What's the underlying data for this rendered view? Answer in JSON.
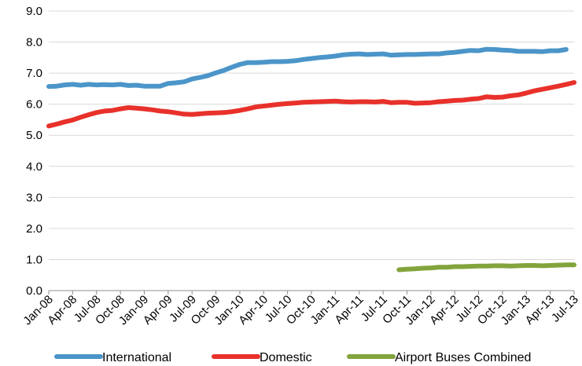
{
  "chart_data": {
    "type": "line",
    "title": "",
    "xlabel": "",
    "ylabel": "",
    "ylim": [
      0,
      9
    ],
    "yticks": [
      "0.0",
      "1.0",
      "2.0",
      "3.0",
      "4.0",
      "5.0",
      "6.0",
      "7.0",
      "8.0",
      "9.0"
    ],
    "grid": true,
    "legend_position": "bottom",
    "x_labels": [
      "Jan-08",
      "Apr-08",
      "Jul-08",
      "Oct-08",
      "Jan-09",
      "Apr-09",
      "Jul-09",
      "Oct-09",
      "Jan-10",
      "Apr-10",
      "Jul-10",
      "Oct-10",
      "Jan-11",
      "Apr-11",
      "Jul-11",
      "Oct-11",
      "Jan-12",
      "Apr-12",
      "Jul-12",
      "Oct-12",
      "Jan-13",
      "Apr-13",
      "Jul-13"
    ],
    "series": [
      {
        "name": "International",
        "color": "#4b95c9",
        "values": [
          6.57,
          6.58,
          6.62,
          6.64,
          6.61,
          6.64,
          6.62,
          6.63,
          6.62,
          6.64,
          6.6,
          6.61,
          6.58,
          6.58,
          6.58,
          6.67,
          6.69,
          6.72,
          6.81,
          6.86,
          6.92,
          7.01,
          7.09,
          7.19,
          7.28,
          7.34,
          7.34,
          7.35,
          7.37,
          7.37,
          7.38,
          7.4,
          7.44,
          7.47,
          7.5,
          7.52,
          7.55,
          7.59,
          7.61,
          7.62,
          7.6,
          7.61,
          7.62,
          7.58,
          7.59,
          7.6,
          7.6,
          7.61,
          7.62,
          7.62,
          7.65,
          7.67,
          7.7,
          7.73,
          7.72,
          7.77,
          7.76,
          7.74,
          7.73,
          7.7,
          7.7,
          7.7,
          7.69,
          7.72,
          7.72,
          7.76
        ]
      },
      {
        "name": "Domestic",
        "color": "#e8312a",
        "values": [
          5.3,
          5.36,
          5.43,
          5.49,
          5.58,
          5.66,
          5.73,
          5.78,
          5.8,
          5.85,
          5.89,
          5.87,
          5.85,
          5.82,
          5.78,
          5.76,
          5.72,
          5.68,
          5.67,
          5.69,
          5.71,
          5.72,
          5.73,
          5.76,
          5.8,
          5.85,
          5.91,
          5.94,
          5.97,
          6.0,
          6.02,
          6.04,
          6.06,
          6.07,
          6.08,
          6.09,
          6.1,
          6.08,
          6.07,
          6.08,
          6.08,
          6.07,
          6.09,
          6.05,
          6.06,
          6.06,
          6.03,
          6.04,
          6.05,
          6.08,
          6.1,
          6.12,
          6.13,
          6.16,
          6.18,
          6.24,
          6.22,
          6.23,
          6.27,
          6.3,
          6.36,
          6.43,
          6.48,
          6.53,
          6.58,
          6.64,
          6.7
        ]
      },
      {
        "name": "Airport Buses Combined",
        "color": "#83a43c",
        "start_index": 44,
        "values": [
          0.67,
          0.69,
          0.7,
          0.72,
          0.73,
          0.75,
          0.75,
          0.77,
          0.77,
          0.78,
          0.79,
          0.79,
          0.8,
          0.8,
          0.79,
          0.8,
          0.81,
          0.81,
          0.8,
          0.81,
          0.82,
          0.83,
          0.83
        ]
      }
    ]
  }
}
